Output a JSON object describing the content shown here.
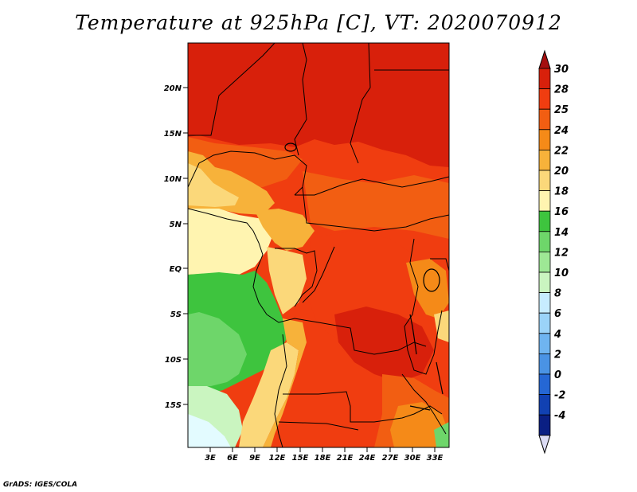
{
  "title": "Temperature at 925hPa [C], VT: 2020070912",
  "credit": "GrADS: IGES/COLA",
  "lat_labels": [
    "20N",
    "15N",
    "10N",
    "5N",
    "EQ",
    "5S",
    "10S",
    "15S"
  ],
  "lon_labels": [
    "3E",
    "6E",
    "9E",
    "12E",
    "15E",
    "18E",
    "21E",
    "24E",
    "27E",
    "30E",
    "33E"
  ],
  "colorbar": {
    "levels": [
      "30",
      "28",
      "25",
      "24",
      "22",
      "20",
      "18",
      "16",
      "14",
      "12",
      "10",
      "8",
      "6",
      "4",
      "2",
      "0",
      "-2",
      "-4"
    ],
    "colors": [
      "#a50f0f",
      "#d8200b",
      "#f03d10",
      "#f25e12",
      "#f58a18",
      "#f7b23a",
      "#fbd87a",
      "#fff4b0",
      "#3ec43e",
      "#6ed66a",
      "#9ee895",
      "#caf5c0",
      "#c7ecff",
      "#9bd3f8",
      "#6fb4f0",
      "#4a93e4",
      "#2567d4",
      "#1141b2",
      "#0a1f83",
      "#dcdcf5"
    ]
  },
  "colors": {
    "hot": "#d8200b",
    "red": "#f03d10",
    "orange": "#f25e12",
    "light_orange": "#f58a18",
    "amber": "#f7b23a",
    "yellow": "#fbd87a",
    "pale": "#fff4b0",
    "green": "#3ec43e",
    "light_green": "#6ed66a",
    "pale_green": "#caf5c0",
    "cyan": "#e3fbff"
  }
}
